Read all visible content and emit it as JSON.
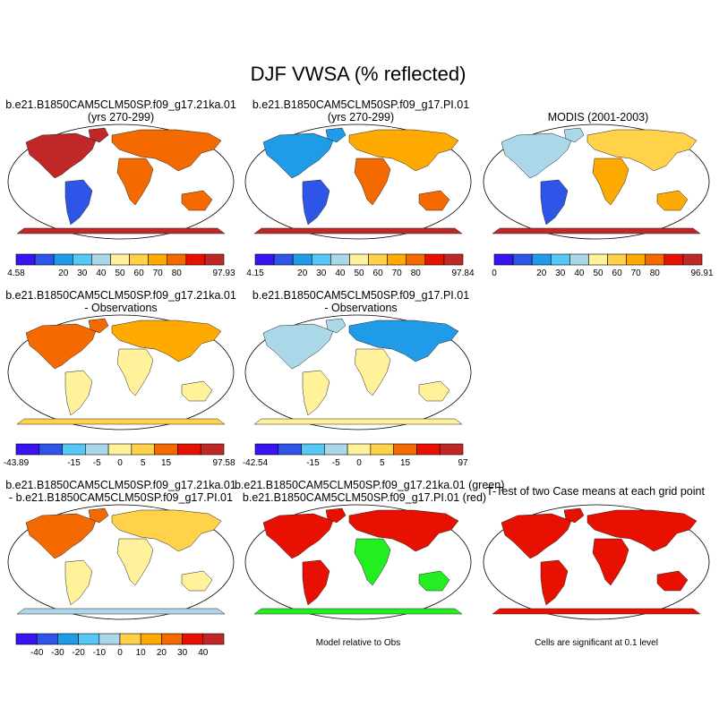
{
  "figure_title": "DJF VWSA (% reflected)",
  "panels": [
    {
      "title_line1": "b.e21.B1850CAM5CLM50SP.f09_g17.21ka.01",
      "title_line2": "(yrs 270-299)"
    },
    {
      "title_line1": "b.e21.B1850CAM5CLM50SP.f09_g17.PI.01",
      "title_line2": "(yrs 270-299)"
    },
    {
      "title_line1": "MODIS (2001-2003)",
      "title_line2": ""
    },
    {
      "title_line1": "b.e21.B1850CAM5CLM50SP.f09_g17.21ka.01",
      "title_line2": "- Observations"
    },
    {
      "title_line1": "b.e21.B1850CAM5CLM50SP.f09_g17.PI.01",
      "title_line2": "- Observations"
    },
    {
      "title_line1": "b.e21.B1850CAM5CLM50SP.f09_g17.21ka.01",
      "title_line2": "- b.e21.B1850CAM5CLM50SP.f09_g17.PI.01"
    },
    {
      "title_line1": "b.e21.B1850CAM5CLM50SP.f09_g17.21ka.01 (green)",
      "title_line2": "b.e21.B1850CAM5CLM50SP.f09_g17.PI.01 (red)"
    },
    {
      "title_line1": "T-Test of two Case means at each grid point",
      "title_line2": ""
    }
  ],
  "notes": {
    "model_relative": "Model relative to Obs",
    "significance": "Cells are significant at 0.1 level"
  },
  "chart_data": {
    "type": "heatmap",
    "colors": {
      "abs": [
        "#3a14f0",
        "#2f55e8",
        "#1f9be8",
        "#55c8f5",
        "#aad8e8",
        "#fff29a",
        "#ffd24a",
        "#ffaa00",
        "#f56a00",
        "#e81000",
        "#c02828"
      ],
      "diff": [
        "#3a14f0",
        "#2f55e8",
        "#1f9be8",
        "#55c8f5",
        "#aad8e8",
        "#fff29a",
        "#ffd24a",
        "#ffaa00",
        "#f56a00",
        "#e81000",
        "#c02828"
      ],
      "land_green": "#22ee22",
      "land_red": "#e81000"
    },
    "colorbars": [
      {
        "labels": [
          "4.58",
          "20",
          "30",
          "40",
          "50",
          "60",
          "70",
          "80",
          "97.93"
        ],
        "bins": 11,
        "end_labels": true
      },
      {
        "labels": [
          "4.15",
          "20",
          "30",
          "40",
          "50",
          "60",
          "70",
          "80",
          "97.84"
        ],
        "bins": 11,
        "end_labels": true
      },
      {
        "labels": [
          "0",
          "20",
          "30",
          "40",
          "50",
          "60",
          "70",
          "80",
          "96.91"
        ],
        "bins": 11,
        "end_labels": true
      },
      {
        "labels": [
          "-43.89",
          "-15",
          "-5",
          "0",
          "5",
          "15",
          "97.58"
        ],
        "bins": 9,
        "end_labels": true
      },
      {
        "labels": [
          "-42.54",
          "-15",
          "-5",
          "0",
          "5",
          "15",
          "97"
        ],
        "bins": 9,
        "end_labels": true
      },
      {
        "labels": [
          "-40",
          "-30",
          "-20",
          "-10",
          "0",
          "10",
          "20",
          "30",
          "40"
        ],
        "bins": 10,
        "end_labels": false
      }
    ],
    "panel_fields": [
      {
        "scheme": "abs",
        "north": 10,
        "south": 10,
        "equator": 1,
        "europe": 8,
        "desert": 8
      },
      {
        "scheme": "abs",
        "north": 2,
        "south": 10,
        "equator": 1,
        "europe": 7,
        "desert": 8
      },
      {
        "scheme": "abs",
        "north": 4,
        "south": 10,
        "equator": 1,
        "europe": 6,
        "desert": 7
      },
      {
        "scheme": "diff",
        "north": 8,
        "south": 6,
        "equator": 5,
        "europe": 7,
        "desert": 5
      },
      {
        "scheme": "diff",
        "north": 4,
        "south": 5,
        "equator": 5,
        "europe": 2,
        "desert": 5
      },
      {
        "scheme": "diff",
        "north": 8,
        "south": 4,
        "equator": 5,
        "europe": 6,
        "desert": 5
      },
      {
        "scheme": "greenred",
        "north": 0,
        "south": 1,
        "equator": 0,
        "europe": 0,
        "desert": 1
      },
      {
        "scheme": "signif",
        "north": 1,
        "south": 1,
        "equator": 1,
        "europe": 1,
        "desert": 1
      }
    ]
  }
}
